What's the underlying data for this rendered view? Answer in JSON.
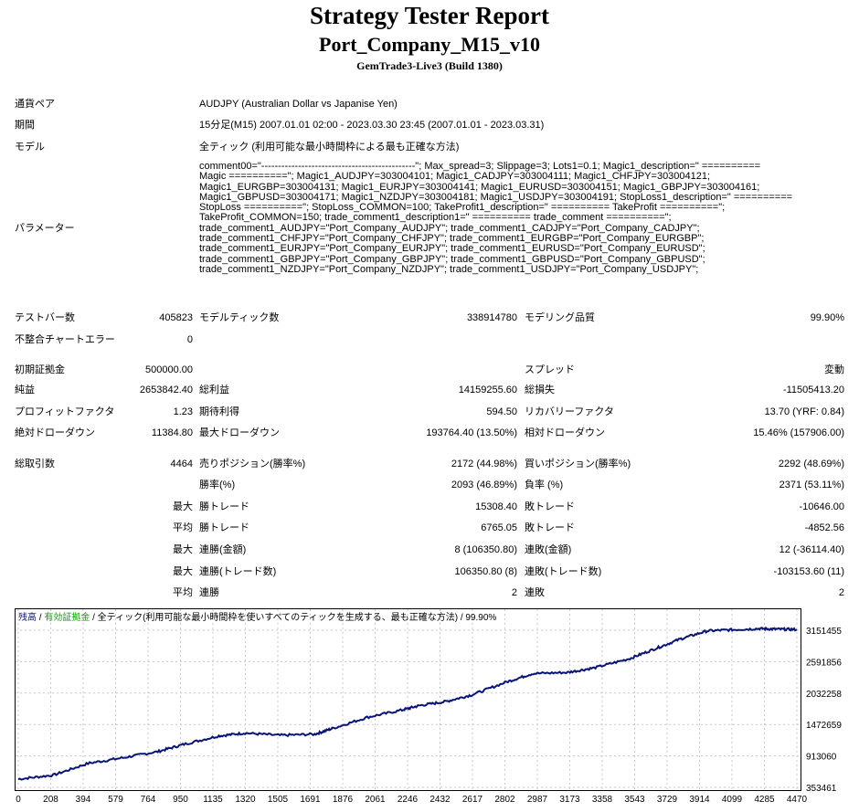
{
  "header": {
    "title": "Strategy Tester Report",
    "subtitle": "Port_Company_M15_v10",
    "build": "GemTrade3-Live3 (Build 1380)"
  },
  "info": {
    "symbol_label": "通貨ペア",
    "symbol_value": "AUDJPY (Australian Dollar vs Japanise Yen)",
    "period_label": "期間",
    "period_value": "15分足(M15) 2007.01.01 02:00 - 2023.03.30 23:45 (2007.01.01 - 2023.03.31)",
    "model_label": "モデル",
    "model_value": "全ティック (利用可能な最小時間枠による最も正確な方法)",
    "params_label": "パラメーター",
    "params_lines": [
      "comment00=\"----------------------------------------------\"; Max_spread=3; Slippage=3; Lots1=0.1; Magic1_description=\" ==========",
      "Magic ==========\"; Magic1_AUDJPY=303004101; Magic1_CADJPY=303004111; Magic1_CHFJPY=303004121;",
      "Magic1_EURGBP=303004131; Magic1_EURJPY=303004141; Magic1_EURUSD=303004151; Magic1_GBPJPY=303004161;",
      "Magic1_GBPUSD=303004171; Magic1_NZDJPY=303004181; Magic1_USDJPY=303004191; StopLoss1_description=\" ==========",
      "StopLoss ==========\"; StopLoss_COMMON=100; TakeProfit1_description=\" ========== TakeProfit ==========\";",
      "TakeProfit_COMMON=150; trade_comment1_description1=\" ========== trade_comment ==========\";",
      "trade_comment1_AUDJPY=\"Port_Company_AUDJPY\"; trade_comment1_CADJPY=\"Port_Company_CADJPY\";",
      "trade_comment1_CHFJPY=\"Port_Company_CHFJPY\"; trade_comment1_EURGBP=\"Port_Company_EURGBP\";",
      "trade_comment1_EURJPY=\"Port_Company_EURJPY\"; trade_comment1_EURUSD=\"Port_Company_EURUSD\";",
      "trade_comment1_GBPJPY=\"Port_Company_GBPJPY\"; trade_comment1_GBPUSD=\"Port_Company_GBPUSD\";",
      "trade_comment1_NZDJPY=\"Port_Company_NZDJPY\"; trade_comment1_USDJPY=\"Port_Company_USDJPY\";"
    ]
  },
  "stats": [
    {
      "y": 342,
      "c": [
        [
          "テストバー数",
          16,
          "l"
        ],
        [
          "405823",
          211,
          "r"
        ],
        [
          "モデルティック数",
          218,
          "l"
        ],
        [
          "338914780",
          566,
          "r"
        ],
        [
          "モデリング品質",
          574,
          "l"
        ],
        [
          "99.90%",
          924,
          "r"
        ]
      ]
    },
    {
      "y": 366,
      "c": [
        [
          "不整合チャートエラー",
          16,
          "l"
        ],
        [
          "0",
          211,
          "r"
        ]
      ]
    },
    {
      "y": 399,
      "c": [
        [
          "初期証拠金",
          16,
          "l"
        ],
        [
          "500000.00",
          211,
          "r"
        ],
        [
          "スプレッド",
          574,
          "l"
        ],
        [
          "変動",
          924,
          "r"
        ]
      ]
    },
    {
      "y": 421,
      "c": [
        [
          "純益",
          16,
          "l"
        ],
        [
          "2653842.40",
          211,
          "r"
        ],
        [
          "総利益",
          218,
          "l"
        ],
        [
          "14159255.60",
          566,
          "r"
        ],
        [
          "総損失",
          574,
          "l"
        ],
        [
          "-11505413.20",
          924,
          "r"
        ]
      ]
    },
    {
      "y": 445,
      "c": [
        [
          "プロフィットファクタ",
          16,
          "l"
        ],
        [
          "1.23",
          211,
          "r"
        ],
        [
          "期待利得",
          218,
          "l"
        ],
        [
          "594.50",
          566,
          "r"
        ],
        [
          "リカバリーファクタ",
          574,
          "l"
        ],
        [
          "13.70 (YRF: 0.84)",
          924,
          "r"
        ]
      ]
    },
    {
      "y": 468,
      "c": [
        [
          "絶対ドローダウン",
          16,
          "l"
        ],
        [
          "11384.80",
          211,
          "r"
        ],
        [
          "最大ドローダウン",
          218,
          "l"
        ],
        [
          "193764.40 (13.50%)",
          566,
          "r"
        ],
        [
          "相対ドローダウン",
          574,
          "l"
        ],
        [
          "15.46% (157906.00)",
          924,
          "r"
        ]
      ]
    },
    {
      "y": 502,
      "c": [
        [
          "総取引数",
          16,
          "l"
        ],
        [
          "4464",
          211,
          "r"
        ],
        [
          "売りポジション(勝率%)",
          218,
          "l"
        ],
        [
          "2172 (44.98%)",
          566,
          "r"
        ],
        [
          "買いポジション(勝率%)",
          574,
          "l"
        ],
        [
          "2292 (48.69%)",
          924,
          "r"
        ]
      ]
    },
    {
      "y": 525,
      "c": [
        [
          "勝率(%)",
          218,
          "l"
        ],
        [
          "2093 (46.89%)",
          566,
          "r"
        ],
        [
          "負率 (%)",
          574,
          "l"
        ],
        [
          "2371 (53.11%)",
          924,
          "r"
        ]
      ]
    },
    {
      "y": 549,
      "c": [
        [
          "最大",
          211,
          "r"
        ],
        [
          "勝トレード",
          218,
          "l"
        ],
        [
          "15308.40",
          566,
          "r"
        ],
        [
          "敗トレード",
          574,
          "l"
        ],
        [
          "-10646.00",
          924,
          "r"
        ]
      ]
    },
    {
      "y": 572,
      "c": [
        [
          "平均",
          211,
          "r"
        ],
        [
          "勝トレード",
          218,
          "l"
        ],
        [
          "6765.05",
          566,
          "r"
        ],
        [
          "敗トレード",
          574,
          "l"
        ],
        [
          "-4852.56",
          924,
          "r"
        ]
      ]
    },
    {
      "y": 596,
      "c": [
        [
          "最大",
          211,
          "r"
        ],
        [
          "連勝(金額)",
          218,
          "l"
        ],
        [
          "8 (106350.80)",
          566,
          "r"
        ],
        [
          "連敗(金額)",
          574,
          "l"
        ],
        [
          "12 (-36114.40)",
          924,
          "r"
        ]
      ]
    },
    {
      "y": 620,
      "c": [
        [
          "最大",
          211,
          "r"
        ],
        [
          "連勝(トレード数)",
          218,
          "l"
        ],
        [
          "106350.80 (8)",
          566,
          "r"
        ],
        [
          "連敗(トレード数)",
          574,
          "l"
        ],
        [
          "-103153.60 (11)",
          924,
          "r"
        ]
      ]
    },
    {
      "y": 643,
      "c": [
        [
          "平均",
          211,
          "r"
        ],
        [
          "連勝",
          218,
          "l"
        ],
        [
          "2",
          566,
          "r"
        ],
        [
          "連敗",
          574,
          "l"
        ],
        [
          "2",
          924,
          "r"
        ]
      ]
    }
  ],
  "chart_data": {
    "type": "line",
    "legend": {
      "balance": "残高",
      "sep": " / ",
      "equity": "有効証拠金",
      "rest": " / 全ティック(利用可能な最小時間枠を使いすべてのティックを生成する、最も正確な方法) / 99.90%"
    },
    "x_ticks": [
      0,
      208,
      394,
      579,
      764,
      950,
      1135,
      1320,
      1505,
      1691,
      1876,
      2061,
      2246,
      2432,
      2617,
      2802,
      2987,
      3173,
      3358,
      3543,
      3729,
      3914,
      4099,
      4285,
      4470
    ],
    "y_ticks": [
      353461,
      913060,
      1472659,
      2032258,
      2591856,
      3151455
    ],
    "xlim": [
      0,
      4464
    ],
    "ylim": [
      353461,
      3151455
    ],
    "series": [
      {
        "values": [
          [
            0,
            500000
          ],
          [
            200,
            570000
          ],
          [
            400,
            780000
          ],
          [
            600,
            880000
          ],
          [
            800,
            990000
          ],
          [
            950,
            1120000
          ],
          [
            1150,
            1270000
          ],
          [
            1300,
            1320000
          ],
          [
            1500,
            1280000
          ],
          [
            1700,
            1300000
          ],
          [
            1800,
            1400000
          ],
          [
            2000,
            1600000
          ],
          [
            2200,
            1730000
          ],
          [
            2300,
            1810000
          ],
          [
            2450,
            1880000
          ],
          [
            2600,
            2000000
          ],
          [
            2800,
            2230000
          ],
          [
            2950,
            2380000
          ],
          [
            3150,
            2400000
          ],
          [
            3300,
            2480000
          ],
          [
            3500,
            2640000
          ],
          [
            3650,
            2820000
          ],
          [
            3800,
            3000000
          ],
          [
            3950,
            3140000
          ],
          [
            4100,
            3160000
          ],
          [
            4250,
            3180000
          ],
          [
            4350,
            3170000
          ],
          [
            4464,
            3165000
          ]
        ]
      }
    ],
    "colors": {
      "balance": "#0a1478",
      "equity": "#00aa00",
      "grid": "#c8c8c8"
    }
  }
}
